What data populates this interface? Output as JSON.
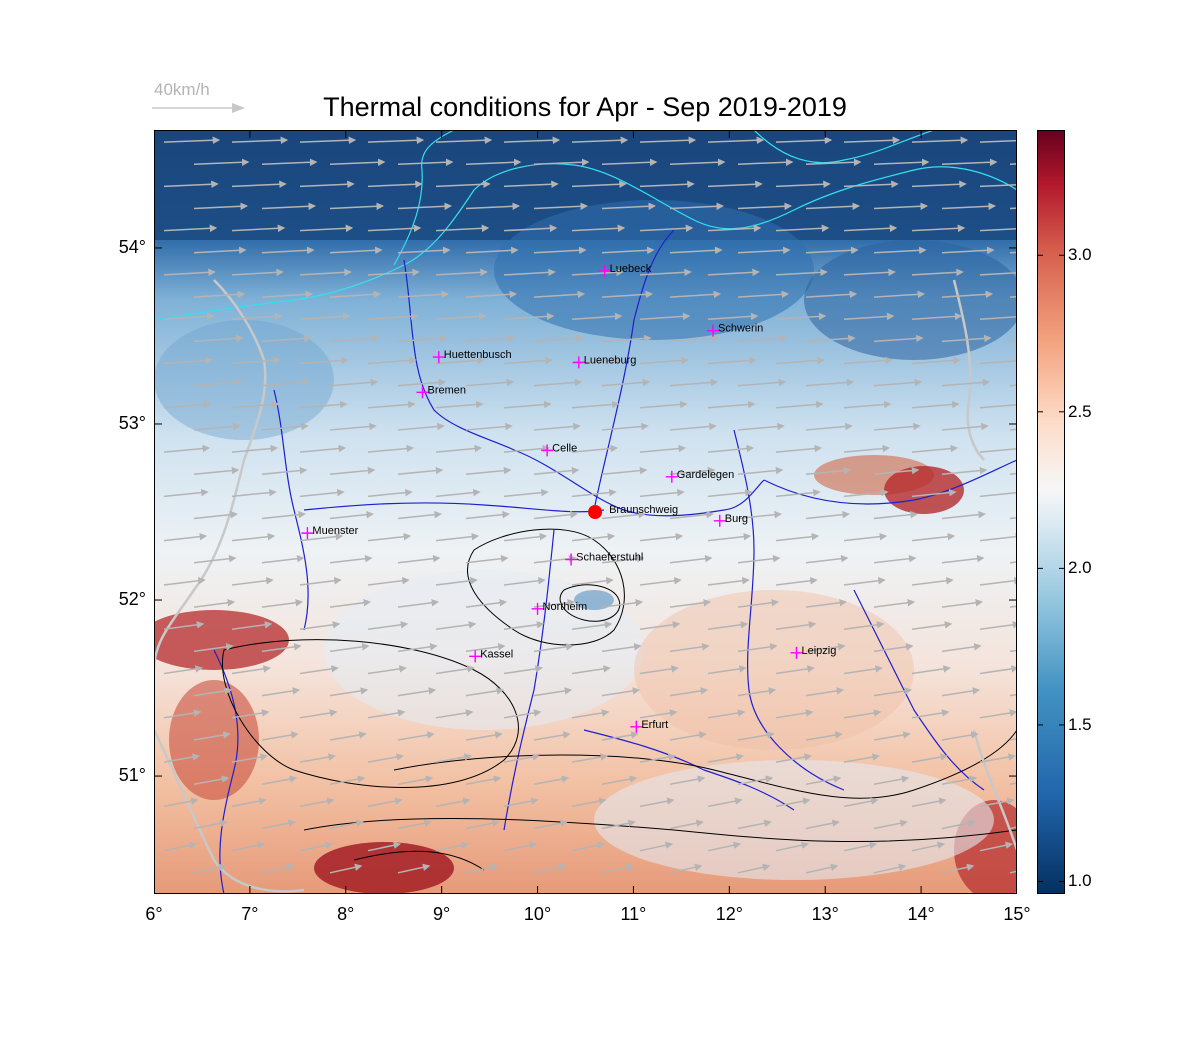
{
  "title": "Thermal conditions for Apr - Sep  2019-2019",
  "wind_reference": {
    "label": "40km/h"
  },
  "map": {
    "lon_range": [
      6,
      15
    ],
    "lat_range": [
      50.33,
      54.67
    ],
    "x_ticks": [
      "6°",
      "7°",
      "8°",
      "9°",
      "10°",
      "11°",
      "12°",
      "13°",
      "14°",
      "15°"
    ],
    "y_ticks": [
      "54°",
      "53°",
      "52°",
      "51°"
    ],
    "colormap": "RdBu_r",
    "marked_site": {
      "name": "Braunschweig",
      "lon": 10.6,
      "lat": 52.5,
      "color": "#ff0000"
    },
    "cities": [
      {
        "name": "Luebeck",
        "lon": 10.7,
        "lat": 53.87
      },
      {
        "name": "Schwerin",
        "lon": 11.83,
        "lat": 53.53
      },
      {
        "name": "Huettenbusch",
        "lon": 8.97,
        "lat": 53.38
      },
      {
        "name": "Lueneburg",
        "lon": 10.43,
        "lat": 53.35
      },
      {
        "name": "Bremen",
        "lon": 8.8,
        "lat": 53.18
      },
      {
        "name": "Celle",
        "lon": 10.1,
        "lat": 52.85
      },
      {
        "name": "Gardelegen",
        "lon": 11.4,
        "lat": 52.7
      },
      {
        "name": "Braunschweig",
        "lon": 10.6,
        "lat": 52.5
      },
      {
        "name": "Burg",
        "lon": 11.9,
        "lat": 52.45
      },
      {
        "name": "Muenster",
        "lon": 7.6,
        "lat": 52.38
      },
      {
        "name": "Schaeferstuhl",
        "lon": 10.35,
        "lat": 52.23
      },
      {
        "name": "Northeim",
        "lon": 10.0,
        "lat": 51.95
      },
      {
        "name": "Kassel",
        "lon": 9.35,
        "lat": 51.68
      },
      {
        "name": "Leipzig",
        "lon": 12.7,
        "lat": 51.7
      },
      {
        "name": "Erfurt",
        "lon": 11.03,
        "lat": 51.28
      }
    ]
  },
  "colorbar": {
    "range": [
      0.96,
      3.4
    ],
    "ticks": [
      {
        "value": 1.0,
        "label": "1.0"
      },
      {
        "value": 1.5,
        "label": "1.5"
      },
      {
        "value": 2.0,
        "label": "2.0"
      },
      {
        "value": 2.5,
        "label": "2.5"
      },
      {
        "value": 3.0,
        "label": "3.0"
      }
    ]
  },
  "colors": {
    "wind_arrow": "#b4b4b4",
    "rivers": "#1f1fd0",
    "coast": "#33e0ee",
    "city_marker": "#ff00ff",
    "border": "#c8c8c8"
  }
}
